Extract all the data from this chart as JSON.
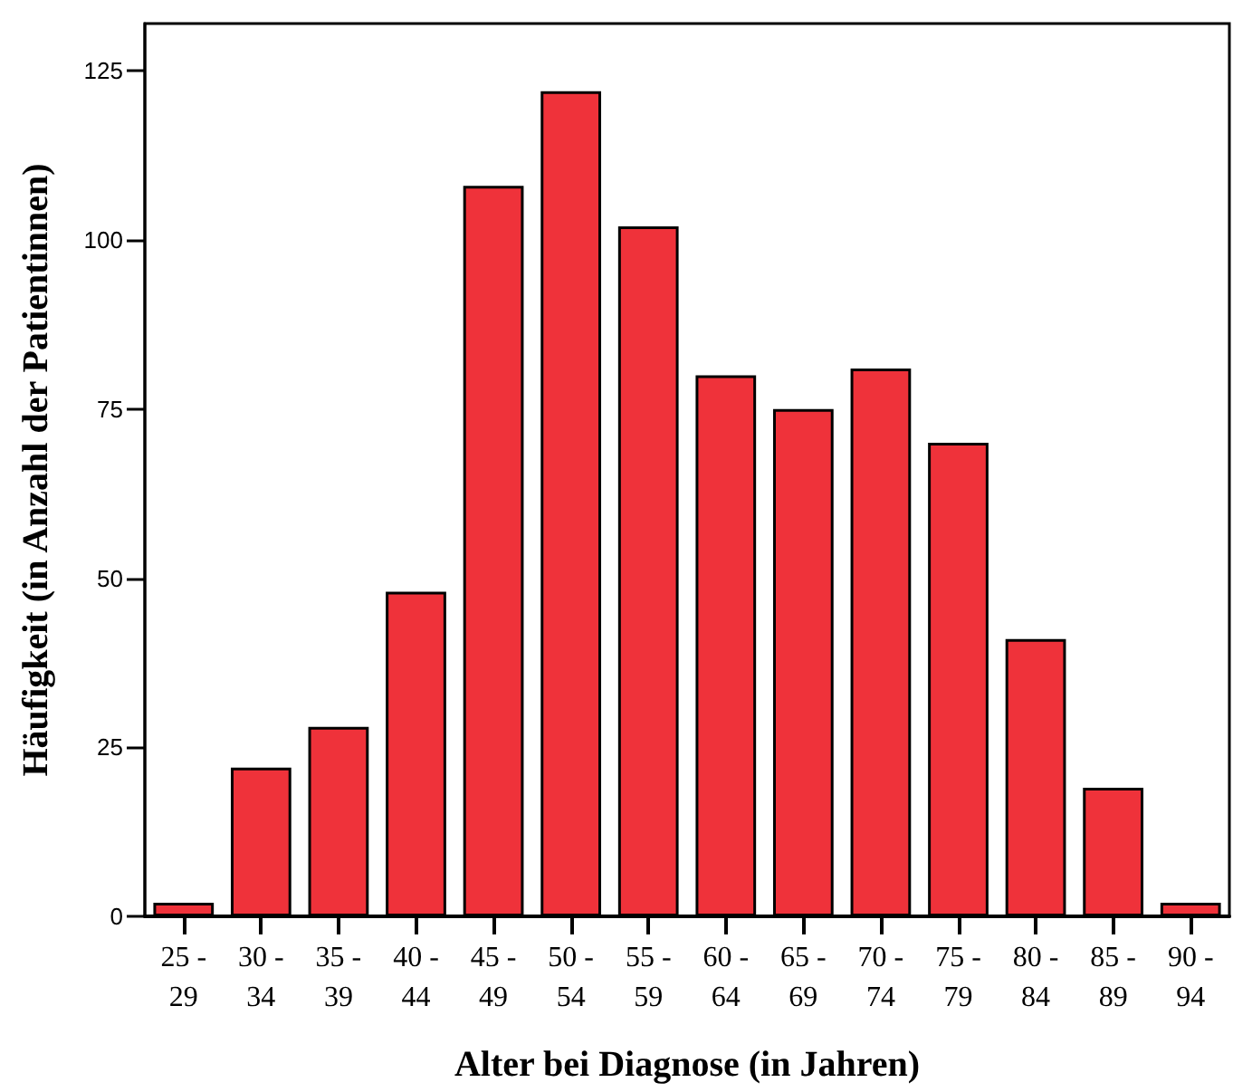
{
  "chart_data": {
    "type": "bar",
    "xlabel": "Alter bei Diagnose (in Jahren)",
    "ylabel": "Häufigkeit (in Anzahl der Patientinnen)",
    "categories": [
      "25 - 29",
      "30 - 34",
      "35 - 39",
      "40 - 44",
      "45 - 49",
      "50 - 54",
      "55 - 59",
      "60 - 64",
      "65 - 69",
      "70 - 74",
      "75 - 79",
      "80 - 84",
      "85 - 89",
      "90 - 94"
    ],
    "values": [
      2,
      22,
      28,
      48,
      108,
      122,
      102,
      80,
      75,
      81,
      70,
      41,
      19,
      2
    ],
    "color": "#ef323a",
    "ylim": [
      0,
      132
    ],
    "yticks": [
      0,
      25,
      50,
      75,
      100,
      125
    ],
    "grid": false
  }
}
